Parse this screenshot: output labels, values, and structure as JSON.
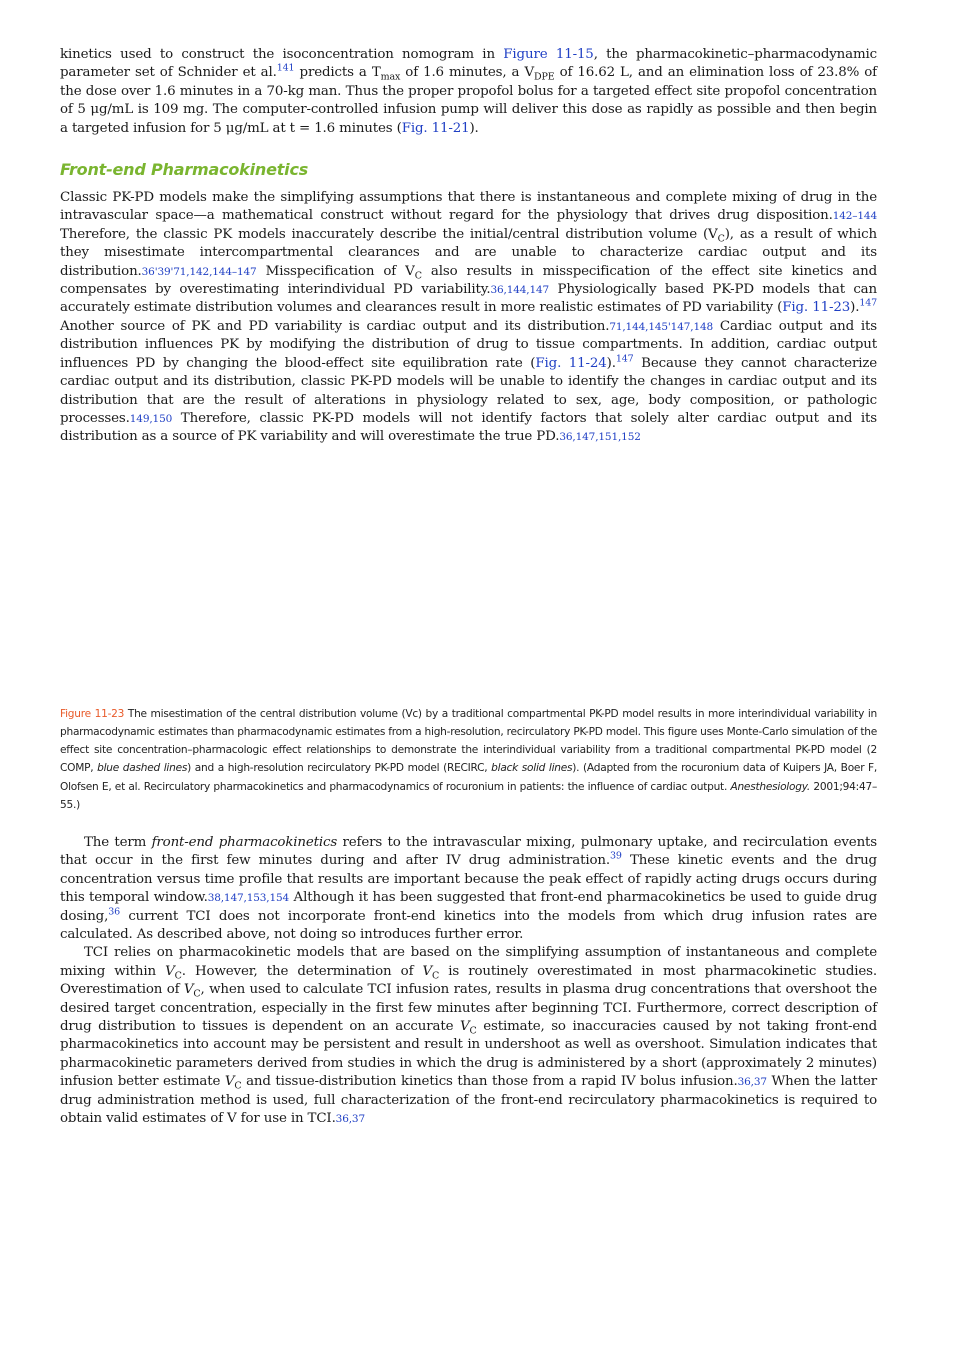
{
  "intro_paragraph": {
    "t1": "kinetics used to construct the isoconcentration nomogram in ",
    "link1": "Figure 11-15",
    "t2": ", the pharmacokinetic–pharmacodynamic parameter set of Schnider et al.",
    "sup1": "141",
    "t3": " predicts a T",
    "sub1": "max",
    "t4": " of 1.6 minutes, a V",
    "sub2": "DPE",
    "t5": " of 16.62 L, and an elimination loss of 23.8% of the dose over 1.6 minutes in a 70-kg man. Thus the proper propofol bolus for a targeted effect site propofol concentration of 5 μg/mL is 109 mg. The computer-controlled infusion pump will deliver this dose as rapidly as possible and then begin a targeted infusion for 5 μg/mL at t = 1.6 minutes (",
    "link2": "Fig. 11-21",
    "t6": ")."
  },
  "section_heading": "Front-end Pharmacokinetics",
  "front_end_paragraph": {
    "t1": "Classic PK-PD models make the simplifying assumptions that there is instantaneous and complete mixing of drug in the intravascular space—a mathematical construct without regard for the physiology that drives drug disposition.",
    "ref1": "142–144",
    "t2": " Therefore, the classic PK models inaccurately describe the initial/central distribution volume (V",
    "sub1": "C",
    "t3": "), as a result of which they misestimate intercompartmental clearances and are unable to characterize cardiac output and its distribution.",
    "ref2": "36'39'71,142,144–147",
    "t4": " Misspecification of V",
    "sub2": "C",
    "t5": " also results in misspecification of the effect site kinetics and compensates by overestimating interindividual PD variability.",
    "ref3": "36,144,147",
    "t6": " Physiologically based PK-PD models that can accurately estimate distribution volumes and clearances result in more realistic estimates of PD variability (",
    "link1": "Fig. 11-23",
    "t7": ").",
    "sup1": "147",
    "t8": " Another source of PK and PD variability is cardiac output and its distribution.",
    "ref4": "71,144,145'147,148",
    "t9": " Cardiac output and its distribution influences PK by modifying the distribution of drug to tissue compartments. In addition, cardiac output influences PD by changing the blood-effect site equilibration rate (",
    "link2": "Fig. 11-24",
    "t10": ").",
    "sup2": "147",
    "t11": " Because they cannot characterize cardiac output and its distribution, classic PK-PD models will be unable to identify the changes in cardiac output and its distribution that are the result of alterations in physiology related to sex, age, body composition, or pathologic processes.",
    "ref5": "149,150",
    "t12": " Therefore, classic PK-PD models will not identify factors that solely alter cardiac output and its distribution as a source of PK variability and will overestimate the true PD.",
    "ref6": "36,147,151,152"
  },
  "figure_caption": {
    "label": "Figure 11-23",
    "t1": " The misestimation of the central distribution volume (Vc) by a traditional compartmental PK-PD model results in more interindividual variability in pharmacodynamic estimates than pharmacodynamic estimates from a high-resolution, recirculatory PK-PD model. This figure uses Monte-Carlo simulation of the effect site concentration–pharmacologic effect relationships to demonstrate the interindividual variability from a traditional compartmental PK-PD model (2 COMP, ",
    "i1": "blue dashed lines",
    "t2": ") and a high-resolution recirculatory PK-PD model (RECIRC, ",
    "i2": "black solid lines",
    "t3": "). (Adapted from the rocuronium data of Kuipers JA, Boer F, Olofsen E, et al. Recirculatory pharmacokinetics and pharmacodynamics of rocuronium in patients: the influence of cardiac output. ",
    "i3": "Anesthesiology.",
    "t4": " 2001;94:47–55.)"
  },
  "term_paragraph": {
    "t1": "The term ",
    "i1": "front-end pharmacokinetics",
    "t2": " refers to the intravascular mixing, pulmonary uptake, and recirculation events that occur in the first few minutes during and after IV drug administration.",
    "sup1": "39",
    "t3": " These kinetic events and the drug concentration versus time profile that results are important because the peak effect of rapidly acting drugs occurs during this temporal window.",
    "ref1": "38,147,153,154",
    "t4": " Although it has been suggested that front-end pharmacokinetics be used to guide drug dosing,",
    "sup2": "36",
    "t5": " current TCI does not incorporate front-end kinetics into the models from which drug infusion rates are calculated. As described above, not doing so introduces further error."
  },
  "tci_paragraph": {
    "t1": "TCI relies on pharmacokinetic models that are based on the simplifying assumption of instantaneous and complete mixing within ",
    "v1": "V",
    "s1": "C",
    "t2": ". However, the determination of ",
    "v2": "V",
    "s2": "C",
    "t3": " is routinely overestimated in most pharmacokinetic studies. Overestimation of ",
    "v3": "V",
    "s3": "C",
    "t4": ", when used to calculate TCI infusion rates, results in plasma drug concentrations that overshoot the desired target concentration, especially in the first few minutes after beginning TCI. Furthermore, correct description of drug distribution to tissues is dependent on an accurate ",
    "v4": "V",
    "s4": "C",
    "t5": " estimate, so inaccuracies caused by not taking front-end pharmacokinetics into account may be persistent and result in undershoot as well as overshoot. Simulation indicates that pharmacokinetic parameters derived from studies in which the drug is administered by a short (approximately 2 minutes) infusion better estimate ",
    "v5": "V",
    "s5": "C",
    "t6": " and tissue-distribution kinetics than those from a rapid IV bolus infusion.",
    "ref1": "36,37",
    "t7": " When the latter drug administration method is used, full characterization of the front-end recirculatory pharmacokinetics is required to obtain valid estimates of V for use in TCI.",
    "ref2": "36,37"
  },
  "colors": {
    "link": "#1f3fc4",
    "heading": "#7ab530",
    "caption_label": "#e85a2a"
  }
}
